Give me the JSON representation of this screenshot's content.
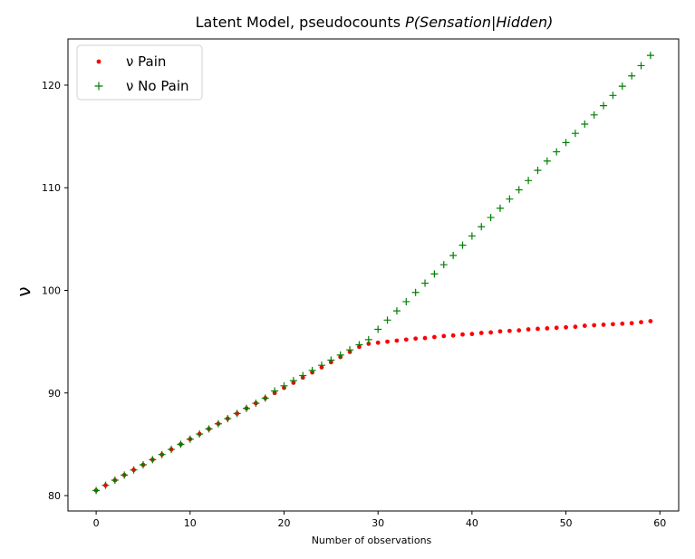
{
  "chart_data": {
    "type": "scatter",
    "title": "Latent Model, pseudocounts ",
    "title_math": "P(Sensation|Hidden)",
    "xlabel": "Number of observations",
    "ylabel": "ν",
    "xlim": [
      -3,
      62
    ],
    "ylim": [
      78.5,
      124.5
    ],
    "xticks": [
      0,
      10,
      20,
      30,
      40,
      50,
      60
    ],
    "yticks": [
      80,
      90,
      100,
      110,
      120
    ],
    "grid": false,
    "legend_position": "upper-left",
    "x": [
      0,
      1,
      2,
      3,
      4,
      5,
      6,
      7,
      8,
      9,
      10,
      11,
      12,
      13,
      14,
      15,
      16,
      17,
      18,
      19,
      20,
      21,
      22,
      23,
      24,
      25,
      26,
      27,
      28,
      29,
      30,
      31,
      32,
      33,
      34,
      35,
      36,
      37,
      38,
      39,
      40,
      41,
      42,
      43,
      44,
      45,
      46,
      47,
      48,
      49,
      50,
      51,
      52,
      53,
      54,
      55,
      56,
      57,
      58,
      59
    ],
    "series": [
      {
        "name": "ν Pain",
        "marker": "dot",
        "color": "#ff0000",
        "values": [
          80.5,
          81.0,
          81.5,
          82.0,
          82.5,
          83.0,
          83.5,
          84.0,
          84.5,
          85.0,
          85.5,
          86.0,
          86.5,
          87.0,
          87.5,
          88.0,
          88.5,
          89.0,
          89.5,
          90.0,
          90.5,
          91.0,
          91.5,
          92.0,
          92.5,
          93.0,
          93.5,
          94.0,
          94.5,
          94.8,
          94.9,
          95.0,
          95.1,
          95.2,
          95.3,
          95.35,
          95.45,
          95.55,
          95.6,
          95.7,
          95.75,
          95.85,
          95.9,
          96.0,
          96.05,
          96.1,
          96.2,
          96.25,
          96.3,
          96.35,
          96.4,
          96.45,
          96.55,
          96.6,
          96.65,
          96.7,
          96.75,
          96.8,
          96.9,
          97.0
        ]
      },
      {
        "name": "ν No Pain",
        "marker": "plus",
        "color": "#008000",
        "values": [
          80.5,
          81.0,
          81.5,
          82.0,
          82.5,
          83.0,
          83.5,
          84.0,
          84.5,
          85.0,
          85.5,
          86.0,
          86.5,
          87.0,
          87.5,
          88.0,
          88.5,
          89.0,
          89.5,
          90.2,
          90.7,
          91.2,
          91.7,
          92.2,
          92.7,
          93.2,
          93.7,
          94.2,
          94.7,
          95.2,
          96.2,
          97.1,
          98.0,
          98.9,
          99.8,
          100.7,
          101.6,
          102.5,
          103.4,
          104.4,
          105.3,
          106.2,
          107.1,
          108.0,
          108.9,
          109.8,
          110.7,
          111.7,
          112.6,
          113.5,
          114.4,
          115.3,
          116.2,
          117.1,
          118.0,
          119.0,
          119.9,
          120.9,
          121.9,
          122.9
        ]
      }
    ]
  }
}
